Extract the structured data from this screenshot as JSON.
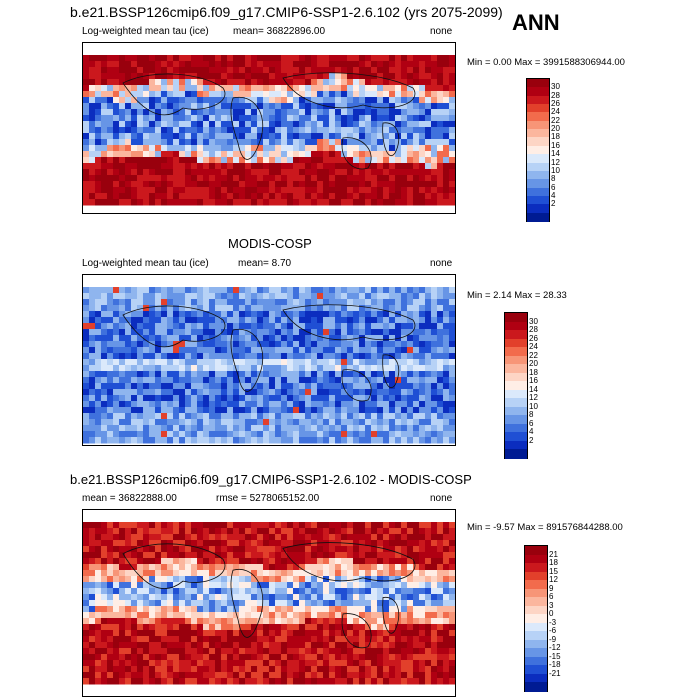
{
  "header": {
    "title": "b.e21.BSSP126cmip6.f09_g17.CMIP6-SSP1-2.6.102 (yrs 2075-2099)",
    "season": "ANN"
  },
  "panels": [
    {
      "id": "model",
      "left_label": "Log-weighted mean tau (ice)",
      "mean_label": "mean=  36822896.00",
      "right_label": "none",
      "minmax": "Min =   0.00 Max = 3991588306944.00",
      "colorbar": {
        "ticks": [
          "30",
          "28",
          "26",
          "24",
          "22",
          "20",
          "18",
          "16",
          "14",
          "12",
          "10",
          "8",
          "6",
          "4",
          "2"
        ]
      }
    },
    {
      "id": "obs",
      "title": "MODIS-COSP",
      "left_label": "Log-weighted mean tau (ice)",
      "mean_label": "mean=  8.70",
      "right_label": "none",
      "minmax": "Min =  2.14 Max =  28.33",
      "colorbar": {
        "ticks": [
          "30",
          "28",
          "26",
          "24",
          "22",
          "20",
          "18",
          "16",
          "14",
          "12",
          "10",
          "8",
          "6",
          "4",
          "2"
        ]
      }
    },
    {
      "id": "diff",
      "title": "b.e21.BSSP126cmip6.f09_g17.CMIP6-SSP1-2.6.102 - MODIS-COSP",
      "left_label": "mean = 36822888.00",
      "rmse_label": "rmse = 5278065152.00",
      "right_label": "none",
      "minmax": "Min =  -9.57 Max = 891576844288.00",
      "colorbar": {
        "ticks": [
          "21",
          "18",
          "15",
          "12",
          "9",
          "6",
          "3",
          "0",
          "-3",
          "-6",
          "-9",
          "-12",
          "-15",
          "-18",
          "-21"
        ]
      }
    }
  ],
  "chart_data": [
    {
      "type": "heatmap",
      "name": "model",
      "colors": [
        "#99000d",
        "#b00012",
        "#cb181d",
        "#e2402b",
        "#f26b4c",
        "#f79577",
        "#fbb69e",
        "#fdd5c5",
        "#ffeee6",
        "#dbe9fb",
        "#b7d2f6",
        "#8fb5ee",
        "#6795e6",
        "#3f71dd",
        "#1f4fd4",
        "#0b2dbf",
        "#001b93"
      ],
      "ticks": [
        30,
        28,
        26,
        24,
        22,
        20,
        18,
        16,
        14,
        12,
        10,
        8,
        6,
        4,
        2
      ]
    },
    {
      "type": "heatmap",
      "name": "obs",
      "colors": [
        "#99000d",
        "#b00012",
        "#cb181d",
        "#e2402b",
        "#f26b4c",
        "#f79577",
        "#fbb69e",
        "#fdd5c5",
        "#ffeee6",
        "#dbe9fb",
        "#b7d2f6",
        "#8fb5ee",
        "#6795e6",
        "#3f71dd",
        "#1f4fd4",
        "#0b2dbf",
        "#001b93"
      ],
      "ticks": [
        30,
        28,
        26,
        24,
        22,
        20,
        18,
        16,
        14,
        12,
        10,
        8,
        6,
        4,
        2
      ]
    },
    {
      "type": "heatmap",
      "name": "diff",
      "colors": [
        "#99000d",
        "#b00012",
        "#cb181d",
        "#e2402b",
        "#f26b4c",
        "#f79577",
        "#fbb69e",
        "#fdd5c5",
        "#ffeee6",
        "#dbe9fb",
        "#b7d2f6",
        "#8fb5ee",
        "#6795e6",
        "#3f71dd",
        "#1f4fd4",
        "#0b2dbf",
        "#001b93"
      ],
      "ticks": [
        21,
        18,
        15,
        12,
        9,
        6,
        3,
        0,
        -3,
        -6,
        -9,
        -12,
        -15,
        -18,
        -21
      ]
    }
  ]
}
